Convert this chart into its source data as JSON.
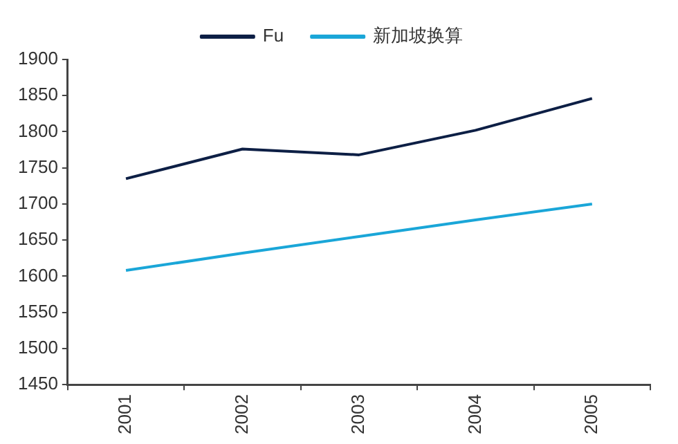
{
  "chart_data": {
    "type": "line",
    "categories": [
      "2001",
      "2002",
      "2003",
      "2004",
      "2005"
    ],
    "series": [
      {
        "name": "Fu",
        "color": "#0d1f45",
        "values": [
          1735,
          1776,
          1768,
          1802,
          1846
        ]
      },
      {
        "name": "新加坡换算",
        "color": "#1aa6d8",
        "values": [
          1608,
          1632,
          1655,
          1678,
          1700
        ]
      }
    ],
    "ylim": [
      1450,
      1900
    ],
    "yticks": [
      1450,
      1500,
      1550,
      1600,
      1650,
      1700,
      1750,
      1800,
      1850,
      1900
    ],
    "grid": false,
    "legend": "top",
    "marker": "none",
    "line_style": "solid"
  }
}
